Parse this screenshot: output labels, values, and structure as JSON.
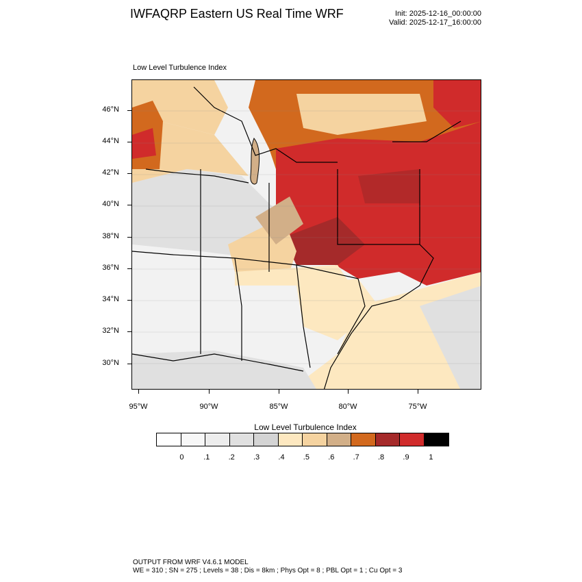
{
  "header": {
    "title": "IWFAQRP Eastern US Real Time WRF",
    "init": "Init: 2025-12-16_00:00:00",
    "valid": "Valid: 2025-12-17_16:00:00"
  },
  "map": {
    "subtitle": "Low Level Turbulence Index",
    "lat_labels": [
      "46°N",
      "44°N",
      "42°N",
      "40°N",
      "38°N",
      "36°N",
      "34°N",
      "32°N",
      "30°N"
    ],
    "lon_labels": [
      "95°W",
      "90°W",
      "85°W",
      "80°W",
      "75°W"
    ]
  },
  "colorbar": {
    "title": "Low Level Turbulence Index",
    "colors": [
      "#ffffff",
      "#f7f7f7",
      "#ededed",
      "#e0e0e0",
      "#d4d4d4",
      "#fde8c0",
      "#f5d3a0",
      "#d2af88",
      "#d2691e",
      "#a52a2a",
      "#d02b2b",
      "#000000"
    ],
    "labels": [
      "0",
      ".1",
      ".2",
      ".3",
      ".4",
      ".5",
      ".6",
      ".7",
      ".8",
      ".9",
      "1"
    ]
  },
  "footer": {
    "line1": "OUTPUT FROM WRF V4.6.1 MODEL",
    "line2": "WE = 310 ; SN = 275 ; Levels = 38 ; Dis = 8km ; Phys Opt = 8 ; PBL Opt = 1 ; Cu Opt = 3"
  }
}
